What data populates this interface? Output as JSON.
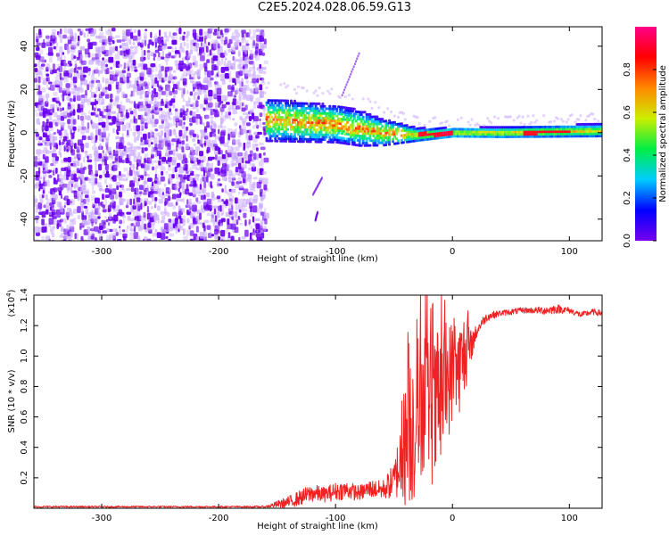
{
  "title": "C2E5.2024.028.06.59.G13",
  "colors": {
    "accent_line": "#ee2222",
    "spectrogram_noise": "#6a00f0",
    "spectrogram_noise_light": "#c7a6ff",
    "frame": "#000000",
    "colorbar_stops": [
      "#7700ee",
      "#0000ff",
      "#00ccff",
      "#00ee44",
      "#ccee00",
      "#ff8800",
      "#ff0000",
      "#ff0088"
    ]
  },
  "chart_data": [
    {
      "type": "heatmap",
      "name": "spectrogram",
      "xlabel": "Height of straight line (km)",
      "ylabel": "Frequency (Hz)",
      "xlim": [
        -358,
        128
      ],
      "ylim": [
        -50,
        49
      ],
      "xticks": [
        -300,
        -200,
        -100,
        0,
        100
      ],
      "yticks": [
        -40,
        -20,
        0,
        20,
        40
      ],
      "xtick_labels": [
        "-300",
        "-200",
        "-100",
        "0",
        "100"
      ],
      "ytick_labels": [
        "-40",
        "-20",
        "0",
        "20",
        "40"
      ],
      "noise_region_x": [
        -358,
        -160
      ],
      "signal_band": {
        "x": [
          -160,
          128
        ],
        "center_hz": [
          [
            -160,
            6
          ],
          [
            -100,
            4
          ],
          [
            -60,
            0
          ],
          [
            -30,
            -1
          ],
          [
            0,
            0
          ],
          [
            40,
            0
          ],
          [
            128,
            1
          ]
        ],
        "halfwidth_hz": [
          [
            -160,
            6
          ],
          [
            -80,
            5
          ],
          [
            -30,
            2
          ],
          [
            0,
            1.5
          ],
          [
            128,
            2
          ]
        ]
      },
      "colorbar": {
        "label": "Normalized spectral amplitude",
        "range": [
          0.0,
          1.0
        ],
        "ticks": [
          0.0,
          0.2,
          0.4,
          0.6,
          0.8
        ],
        "tick_labels": [
          "0.0",
          "0.2",
          "0.4",
          "0.6",
          "0.8"
        ]
      }
    },
    {
      "type": "line",
      "name": "snr",
      "xlabel": "Height of straight line (km)",
      "ylabel": "SNR (10 * v/v)",
      "ylabel_scale": "(x10",
      "ylabel_scale_exp": "4",
      "ylabel_scale_close": ")",
      "xlim": [
        -358,
        128
      ],
      "ylim": [
        0,
        1.4
      ],
      "xticks": [
        -300,
        -200,
        -100,
        0,
        100
      ],
      "yticks": [
        0.2,
        0.4,
        0.6,
        0.8,
        1.0,
        1.2,
        1.4
      ],
      "xtick_labels": [
        "-300",
        "-200",
        "-100",
        "0",
        "100"
      ],
      "ytick_labels": [
        "0.2",
        "0.4",
        "0.6",
        "0.8",
        "1.0",
        "1.2",
        "1.4"
      ],
      "series": [
        {
          "color": "#ee2222",
          "x": [
            -358,
            -340,
            -320,
            -300,
            -280,
            -260,
            -240,
            -220,
            -200,
            -180,
            -160,
            -140,
            -130,
            -120,
            -110,
            -100,
            -90,
            -80,
            -70,
            -60,
            -50,
            -45,
            -40,
            -35,
            -30,
            -25,
            -20,
            -15,
            -10,
            -5,
            0,
            5,
            10,
            15,
            20,
            25,
            30,
            40,
            50,
            60,
            70,
            80,
            90,
            100,
            110,
            120,
            128
          ],
          "y": [
            0.01,
            0.01,
            0.01,
            0.01,
            0.01,
            0.01,
            0.01,
            0.01,
            0.01,
            0.01,
            0.01,
            0.04,
            0.07,
            0.1,
            0.09,
            0.11,
            0.12,
            0.1,
            0.13,
            0.12,
            0.18,
            0.3,
            0.45,
            0.55,
            0.6,
            0.75,
            0.7,
            0.6,
            0.72,
            0.82,
            0.9,
            0.9,
            1.0,
            1.05,
            1.15,
            1.22,
            1.26,
            1.28,
            1.29,
            1.3,
            1.3,
            1.3,
            1.31,
            1.3,
            1.27,
            1.29,
            1.28
          ],
          "noise": [
            0.005,
            0.006,
            0.005,
            0.005,
            0.005,
            0.005,
            0.005,
            0.005,
            0.005,
            0.005,
            0.006,
            0.04,
            0.05,
            0.06,
            0.05,
            0.06,
            0.06,
            0.05,
            0.06,
            0.06,
            0.12,
            0.25,
            0.45,
            0.55,
            0.55,
            0.5,
            0.5,
            0.5,
            0.45,
            0.4,
            0.35,
            0.3,
            0.3,
            0.12,
            0.05,
            0.03,
            0.03,
            0.02,
            0.02,
            0.02,
            0.02,
            0.03,
            0.03,
            0.02,
            0.02,
            0.02,
            0.02
          ]
        }
      ]
    }
  ]
}
